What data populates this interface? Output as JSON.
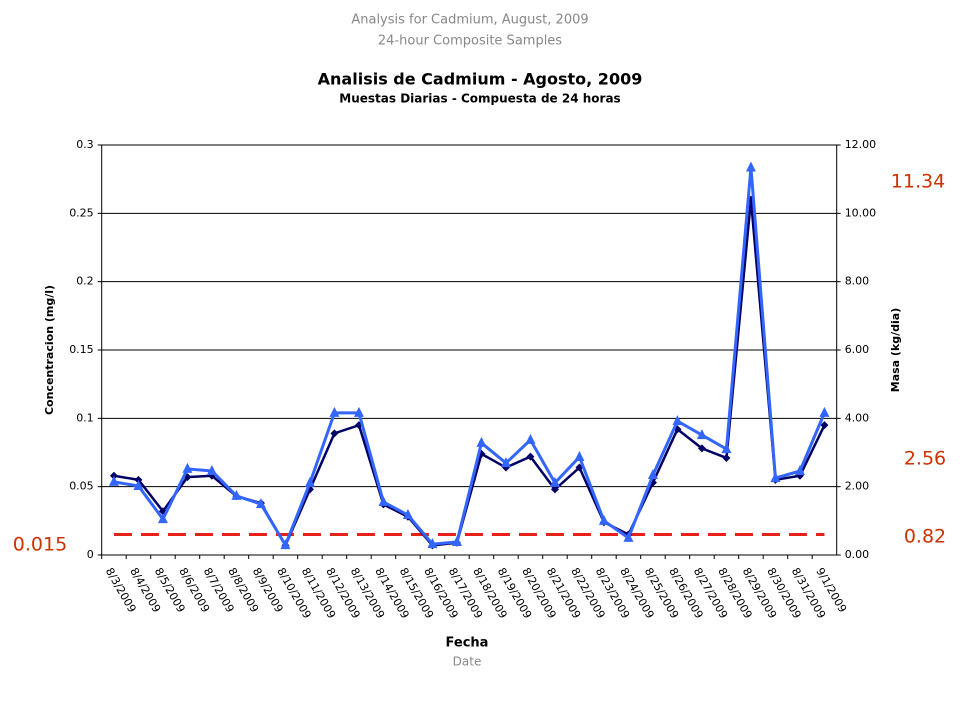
{
  "chart_data": {
    "type": "line",
    "supertitle": "Analysis for Cadmium,  August, 2009",
    "supersubtitle": "24-hour Composite Samples",
    "title": "Analisis de Cadmium - Agosto, 2009",
    "subtitle": "Muestas Diarias - Compuesta de 24 horas",
    "xlabel": "Fecha",
    "xlabel_en": "Date",
    "ylabel": "Concentracion (mg/l)",
    "y2label": "Masa (kg/dia)",
    "categories": [
      "8/3/2009",
      "8/4/2009",
      "8/5/2009",
      "8/6/2009",
      "8/7/2009",
      "8/8/2009",
      "8/9/2009",
      "8/10/2009",
      "8/11/2009",
      "8/12/2009",
      "8/13/2009",
      "8/14/2009",
      "8/15/2009",
      "8/16/2009",
      "8/17/2009",
      "8/18/2009",
      "8/19/2009",
      "8/20/2009",
      "8/21/2009",
      "8/22/2009",
      "8/23/2009",
      "8/24/2009",
      "8/25/2009",
      "8/26/2009",
      "8/27/2009",
      "8/28/2009",
      "8/29/2009",
      "8/30/2009",
      "8/31/2009",
      "9/1/2009"
    ],
    "series": [
      {
        "color": "#000066",
        "marker": "diamond",
        "axis": "y",
        "values": [
          0.058,
          0.055,
          0.032,
          0.057,
          0.058,
          0.043,
          0.038,
          0.007,
          0.048,
          0.089,
          0.095,
          0.037,
          0.028,
          0.007,
          0.009,
          0.074,
          0.064,
          0.072,
          0.048,
          0.064,
          0.024,
          0.015,
          0.053,
          0.092,
          0.078,
          0.071,
          0.26,
          0.055,
          0.058,
          0.095
        ]
      },
      {
        "color": "#3366ff",
        "marker": "triangle",
        "axis": "y2",
        "values": [
          2.14,
          2.02,
          1.05,
          2.52,
          2.46,
          1.73,
          1.49,
          0.29,
          2.11,
          4.16,
          4.16,
          1.55,
          1.17,
          0.32,
          0.38,
          3.28,
          2.69,
          3.37,
          2.11,
          2.87,
          1.0,
          0.5,
          2.34,
          3.92,
          3.51,
          3.1,
          11.34,
          2.25,
          2.46,
          4.16
        ]
      }
    ],
    "ylim": [
      0,
      0.3
    ],
    "yticks": [
      0,
      0.05,
      0.1,
      0.15,
      0.2,
      0.25,
      0.3
    ],
    "y2lim": [
      0,
      12
    ],
    "y2ticks": [
      {
        "value": 0,
        "label": "0.00"
      },
      {
        "value": 2,
        "label": "2.00"
      },
      {
        "value": 4,
        "label": "4.00"
      },
      {
        "value": 6,
        "label": "6.00"
      },
      {
        "value": 8,
        "label": "8.00"
      },
      {
        "value": 10,
        "label": "10.00"
      },
      {
        "value": 12,
        "label": "12.00"
      }
    ],
    "grid": true,
    "threshold": {
      "value": 0.015,
      "color": "#e8201a"
    },
    "annotations": [
      "11.34",
      "2.56",
      "0.82"
    ]
  }
}
